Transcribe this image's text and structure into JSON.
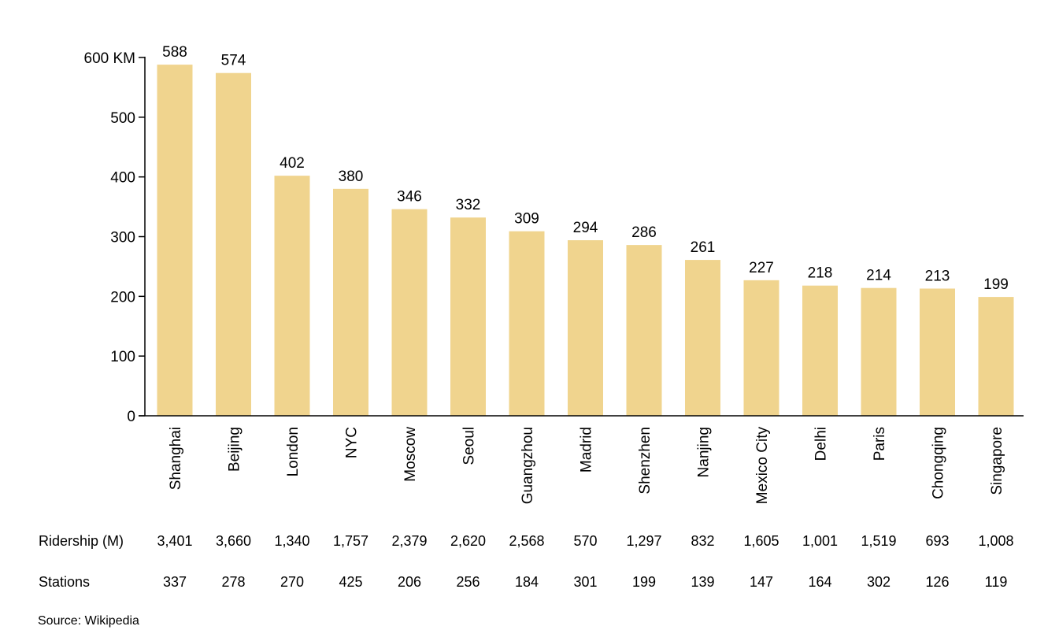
{
  "chart_data": {
    "type": "bar",
    "title": "",
    "xlabel": "",
    "ylabel": "",
    "ylim": [
      0,
      600
    ],
    "yticks": [
      0,
      100,
      200,
      300,
      400,
      500,
      600
    ],
    "ytick_labels": [
      "0",
      "100",
      "200",
      "300",
      "400",
      "500",
      "600 KM"
    ],
    "bar_color": "#F0D48E",
    "categories": [
      "Shanghai",
      "Beijing",
      "London",
      "NYC",
      "Moscow",
      "Seoul",
      "Guangzhou",
      "Madrid",
      "Shenzhen",
      "Nanjing",
      "Mexico City",
      "Delhi",
      "Paris",
      "Chongqing",
      "Singapore"
    ],
    "values": [
      588,
      574,
      402,
      380,
      346,
      332,
      309,
      294,
      286,
      261,
      227,
      218,
      214,
      213,
      199
    ],
    "table": {
      "rows": [
        {
          "label": "Ridership (M)",
          "values": [
            "3,401",
            "3,660",
            "1,340",
            "1,757",
            "2,379",
            "2,620",
            "2,568",
            "570",
            "1,297",
            "832",
            "1,605",
            "1,001",
            "1,519",
            "693",
            "1,008"
          ]
        },
        {
          "label": "Stations",
          "values": [
            "337",
            "278",
            "270",
            "425",
            "206",
            "256",
            "184",
            "301",
            "199",
            "139",
            "147",
            "164",
            "302",
            "126",
            "119"
          ]
        }
      ]
    },
    "source": "Source: Wikipedia"
  }
}
